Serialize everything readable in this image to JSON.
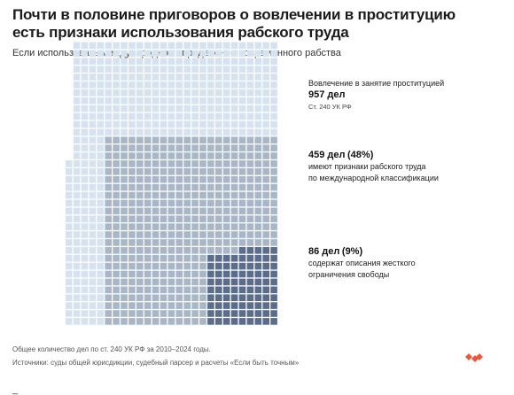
{
  "header": {
    "title": "Почти в половине приговоров о вовлечении в проституцию есть признаки использования рабского труда",
    "subtitle": "Если использовать международное определение современного рабства"
  },
  "annotations": {
    "total": {
      "label": "Вовлечение в занятие проституцией",
      "value": "957 дел",
      "source": "Ст. 240 УК РФ"
    },
    "slavery": {
      "value": "459 дел",
      "pct": "(48%)",
      "line1": "имеют признаки рабского труда",
      "line2": "по международной классификации"
    },
    "restraint": {
      "value": "86 дел",
      "pct": "(9%)",
      "line1": "содержат описания жесткого",
      "line2": "ограничения свободы"
    }
  },
  "footer": {
    "note": "Общее количество дел по ст. 240 УК РФ за 2010–2024 годы.",
    "sources": "Источники: суды общей юрисдикции, судебный парсер и расчеты «Если быть точным»"
  },
  "bottom_cut_text": "_",
  "logo": {
    "name": "heart-logo",
    "color": "#e8593c"
  },
  "colors": {
    "total": "#d6e2ef",
    "slavery": "#a8b6c8",
    "restraint": "#5b6c8d"
  },
  "chart_data": {
    "type": "waffle",
    "unit": "дел",
    "total": 957,
    "groups": [
      {
        "name": "Вовлечение в занятие проституцией",
        "value": 957,
        "color": "#d6e2ef"
      },
      {
        "name": "имеют признаки рабского труда",
        "value": 459,
        "pct": 48,
        "color": "#a8b6c8"
      },
      {
        "name": "содержат описания жесткого ограничения свободы",
        "value": 86,
        "pct": 9,
        "color": "#5b6c8d"
      }
    ]
  }
}
